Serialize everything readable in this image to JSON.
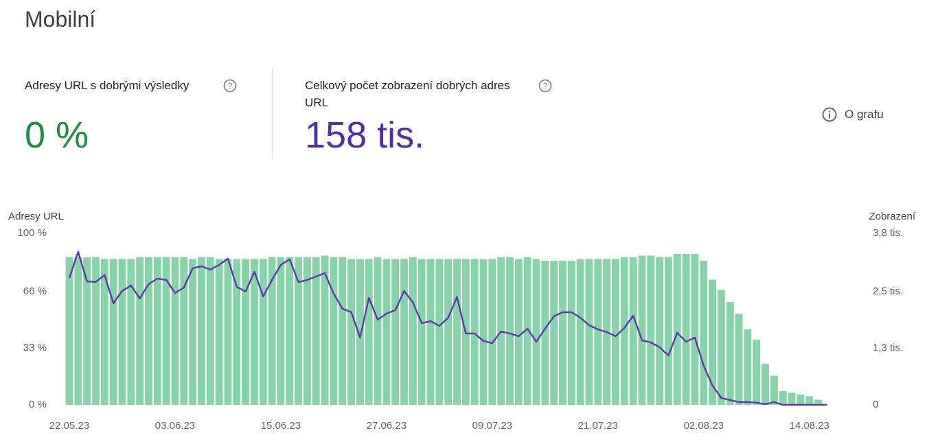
{
  "header": {
    "title": "Mobilní"
  },
  "metrics": [
    {
      "label": "Adresy URL s dobrými výsledky",
      "value": "0 %"
    },
    {
      "label": "Celkový počet zobrazení dobrých adres URL",
      "value": "158 tis."
    }
  ],
  "about": "O grafu",
  "chart_data": {
    "type": "combo",
    "y_label": "Adresy URL",
    "y2_label": "Zobrazení",
    "categories": [
      "22.05.23",
      null,
      null,
      null,
      null,
      null,
      null,
      null,
      null,
      null,
      null,
      null,
      "03.06.23",
      null,
      null,
      null,
      null,
      null,
      null,
      null,
      null,
      null,
      null,
      null,
      "15.06.23",
      null,
      null,
      null,
      null,
      null,
      null,
      null,
      null,
      null,
      null,
      null,
      "27.06.23",
      null,
      null,
      null,
      null,
      null,
      null,
      null,
      null,
      null,
      null,
      null,
      "09.07.23",
      null,
      null,
      null,
      null,
      null,
      null,
      null,
      null,
      null,
      null,
      null,
      "21.07.23",
      null,
      null,
      null,
      null,
      null,
      null,
      null,
      null,
      null,
      null,
      null,
      "02.08.23",
      null,
      null,
      null,
      null,
      null,
      null,
      null,
      null,
      null,
      null,
      null,
      "14.08.23",
      null,
      null
    ],
    "series": [
      {
        "type": "bar",
        "color": "#87d4aa",
        "values": [
          86,
          86,
          86,
          86,
          85,
          85,
          85,
          85,
          86,
          86,
          86,
          86,
          86,
          86,
          85,
          86,
          86,
          85,
          85,
          85,
          85,
          85,
          85,
          86,
          86,
          86,
          86,
          86,
          86,
          87,
          86,
          86,
          85,
          85,
          85,
          86,
          85,
          85,
          85,
          86,
          85,
          85,
          85,
          85,
          85,
          85,
          85,
          85,
          85,
          86,
          86,
          85,
          86,
          85,
          84,
          84,
          84,
          84,
          85,
          85,
          85,
          85,
          85,
          86,
          86,
          87,
          87,
          86,
          86,
          88,
          88,
          88,
          84,
          73,
          67,
          60,
          53,
          44,
          38,
          24,
          17,
          8,
          7,
          6,
          5,
          3,
          0
        ]
      },
      {
        "type": "line",
        "axis": "y2",
        "color": "#5b36ad",
        "values": [
          2812,
          3390,
          2736,
          2721,
          2873,
          2250,
          2523,
          2645,
          2356,
          2675,
          2797,
          2766,
          2478,
          2599,
          3025,
          3070,
          2994,
          3101,
          3238,
          2614,
          2508,
          2949,
          2402,
          2766,
          3101,
          3222,
          2721,
          2766,
          2842,
          2918,
          2462,
          2128,
          2052,
          1490,
          2371,
          1885,
          2022,
          2098,
          2523,
          2265,
          1809,
          1854,
          1748,
          1930,
          2386,
          1581,
          1581,
          1414,
          1368,
          1626,
          1581,
          1520,
          1687,
          1398,
          1687,
          1961,
          2052,
          2052,
          1930,
          1763,
          1672,
          1611,
          1520,
          1702,
          1976,
          1429,
          1383,
          1277,
          1094,
          1596,
          1398,
          1490,
          866,
          426,
          152,
          106,
          61,
          61,
          46,
          15,
          61,
          0,
          0,
          0,
          0,
          0,
          0
        ]
      }
    ],
    "ylim": [
      0,
      100
    ],
    "yticks": [
      {
        "value": 0,
        "label": "0 %"
      },
      {
        "value": 33,
        "label": "33 %"
      },
      {
        "value": 66,
        "label": "66 %"
      },
      {
        "value": 100,
        "label": "100 %"
      }
    ],
    "y2lim": [
      0,
      3800
    ],
    "y2ticks": [
      0,
      {
        "value": 1254,
        "label": "1,3 tis."
      },
      {
        "value": 2508,
        "label": "2,5 tis."
      },
      {
        "value": 3800,
        "label": "3,8 tis."
      }
    ],
    "grid": false
  }
}
